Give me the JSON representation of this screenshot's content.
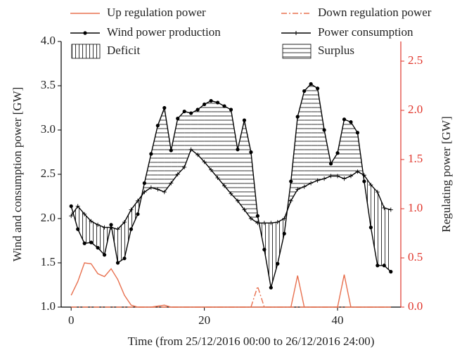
{
  "chart_data": {
    "type": "line",
    "xlabel": "Time (from 25/12/2016 00:00 to 26/12/2016 24:00)",
    "ylabel": "Wind and consumption power [GW]",
    "y2label": "Regulating power [GW]",
    "x": [
      0,
      1,
      2,
      3,
      4,
      5,
      6,
      7,
      8,
      9,
      10,
      11,
      12,
      13,
      14,
      15,
      16,
      17,
      18,
      19,
      20,
      21,
      22,
      23,
      24,
      25,
      26,
      27,
      28,
      29,
      30,
      31,
      32,
      33,
      34,
      35,
      36,
      37,
      38,
      39,
      40,
      41,
      42,
      43,
      44,
      45,
      46,
      47,
      48
    ],
    "series": [
      {
        "name": "Up regulation power",
        "color": "#e8704f",
        "axis": "y2",
        "dash": "solid",
        "marker": "none",
        "values": [
          0.12,
          0.26,
          0.45,
          0.44,
          0.34,
          0.31,
          0.39,
          0.28,
          0.12,
          0.02,
          0,
          0,
          0,
          0.01,
          0.02,
          0,
          0,
          0,
          0,
          0,
          0,
          0,
          0,
          0,
          0,
          0,
          0,
          0,
          0,
          0,
          0,
          0,
          0,
          0,
          0.32,
          0,
          0,
          0,
          0,
          0,
          0,
          0.33,
          0,
          0,
          0,
          0,
          0,
          0,
          0
        ]
      },
      {
        "name": "Down regulation power",
        "color": "#e8704f",
        "axis": "y2",
        "dash": "dashdot",
        "marker": "none",
        "values": [
          0,
          0,
          0,
          0,
          0,
          0,
          0,
          0,
          0,
          0,
          0,
          0,
          0,
          0,
          0,
          0,
          0,
          0,
          0,
          0,
          0,
          0,
          0,
          0,
          0,
          0,
          0,
          0,
          0.21,
          0,
          0,
          0,
          0,
          0,
          0,
          0,
          0,
          0,
          0,
          0,
          0,
          0,
          0,
          0,
          0,
          0,
          0,
          0,
          0
        ]
      },
      {
        "name": "Wind power production",
        "color": "#000000",
        "axis": "y",
        "dash": "solid",
        "marker": "circle",
        "values": [
          2.14,
          1.88,
          1.72,
          1.73,
          1.67,
          1.59,
          1.93,
          1.5,
          1.55,
          1.88,
          2.05,
          2.4,
          2.73,
          3.05,
          3.25,
          2.77,
          3.13,
          3.21,
          3.19,
          3.23,
          3.29,
          3.33,
          3.31,
          3.27,
          3.23,
          2.78,
          3.11,
          2.75,
          2.03,
          1.65,
          1.22,
          1.49,
          1.83,
          2.42,
          3.15,
          3.44,
          3.52,
          3.47,
          3.0,
          2.62,
          2.74,
          3.12,
          3.09,
          2.97,
          2.42,
          1.9,
          1.47,
          1.47,
          1.4
        ]
      },
      {
        "name": "Power consumption",
        "color": "#000000",
        "axis": "y",
        "dash": "solid",
        "marker": "plus",
        "values": [
          2.03,
          2.14,
          2.05,
          1.97,
          1.93,
          1.9,
          1.9,
          1.88,
          1.96,
          2.1,
          2.2,
          2.3,
          2.35,
          2.33,
          2.3,
          2.4,
          2.5,
          2.58,
          2.78,
          2.72,
          2.64,
          2.55,
          2.46,
          2.37,
          2.28,
          2.2,
          2.1,
          2.0,
          1.95,
          1.95,
          1.95,
          1.96,
          2.0,
          2.2,
          2.33,
          2.36,
          2.4,
          2.43,
          2.45,
          2.48,
          2.48,
          2.45,
          2.48,
          2.53,
          2.49,
          2.38,
          2.3,
          2.12,
          2.1
        ]
      }
    ],
    "fills": [
      {
        "name": "Deficit",
        "hatch": "vertical"
      },
      {
        "name": "Surplus",
        "hatch": "horizontal"
      }
    ],
    "xlim": [
      -1.5,
      49.5
    ],
    "xticks": [
      0,
      20,
      40
    ],
    "ylim": [
      1.0,
      4.0
    ],
    "yticks": [
      {
        "value": 1,
        "label": "1.0"
      },
      1.5,
      {
        "value": 2,
        "label": "2.0"
      },
      2.5,
      {
        "value": 3,
        "label": "3.0"
      },
      3.5,
      {
        "value": 4,
        "label": "4.0"
      }
    ],
    "y2lim": [
      0,
      2.7
    ],
    "y2ticks": [
      {
        "value": 0,
        "label": "0.0"
      },
      0.5,
      {
        "value": 1,
        "label": "1.0"
      },
      1.5,
      {
        "value": 2,
        "label": "2.0"
      },
      2.5
    ],
    "y2color": "#e0352b"
  }
}
